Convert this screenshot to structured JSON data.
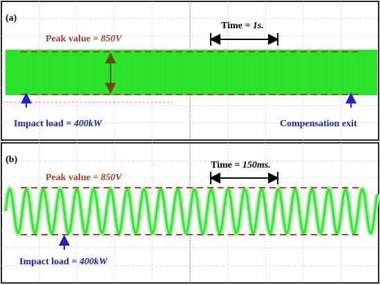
{
  "panels": [
    {
      "label": "(a)",
      "peak_label": "Peak value = ",
      "peak_value": "850V",
      "time_label": "Time = ",
      "time_value": "1s.",
      "impact_label": "Impact load = ",
      "impact_value": "400kW",
      "exit_label": "Compensation exit"
    },
    {
      "label": "(b)",
      "peak_label": "Peak value = ",
      "peak_value": "850V",
      "time_label": "Time = ",
      "time_value": "150ms.",
      "impact_label": "Impact load = ",
      "impact_value": "400kW"
    }
  ]
}
